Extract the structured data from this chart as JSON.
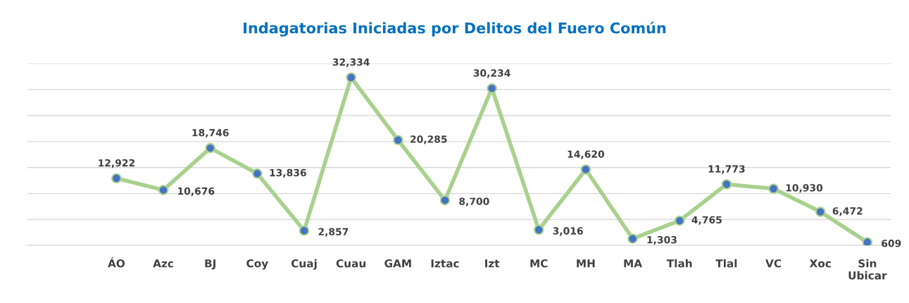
{
  "chart_data": {
    "type": "line",
    "title": "Indagatorias Iniciadas por Delitos del Fuero Común",
    "categories": [
      "ÁO",
      "Azc",
      "BJ",
      "Coy",
      "Cuaj",
      "Cuau",
      "GAM",
      "Iztac",
      "Izt",
      "MC",
      "MH",
      "MA",
      "Tlah",
      "Tlal",
      "VC",
      "Xoc",
      "Sin Ubicar"
    ],
    "series": [
      {
        "color": "#a9d18e",
        "colors": [
          "#4472c4",
          "#4472c4",
          "#4472c4",
          "#4472c4",
          "#4472c4",
          "#4472c4",
          "#4472c4",
          "#4472c4",
          "#4472c4",
          "#4472c4",
          "#4472c4",
          "#4472c4",
          "#4472c4",
          "#4472c4",
          "#4472c4",
          "#4472c4",
          "#4472c4"
        ],
        "values": [
          12922,
          10676,
          18746,
          13836,
          2857,
          32334,
          20285,
          8700,
          30234,
          3016,
          14620,
          1303,
          4765,
          11773,
          10930,
          6472,
          609
        ],
        "value_labels": [
          "12,922",
          "10,676",
          "18,746",
          "13,836",
          "2,857",
          "32,334",
          "20,285",
          "8,700",
          "30,234",
          "3,016",
          "14,620",
          "1,303",
          "4,765",
          "11,773",
          "10,930",
          "6,472",
          "609"
        ]
      }
    ],
    "ylim": [
      0,
      35000
    ],
    "yticks": [
      {
        "value": 0,
        "label": null
      },
      {
        "value": 5000,
        "label": null
      },
      {
        "value": 10000,
        "label": null
      },
      {
        "value": 15000,
        "label": null
      },
      {
        "value": 20000,
        "label": null
      },
      {
        "value": 25000,
        "label": null
      },
      {
        "value": 30000,
        "label": null
      },
      {
        "value": 35000,
        "label": null
      }
    ],
    "tick_labels": "x",
    "grid": "y",
    "marker": "circle",
    "line_style": "solid"
  }
}
